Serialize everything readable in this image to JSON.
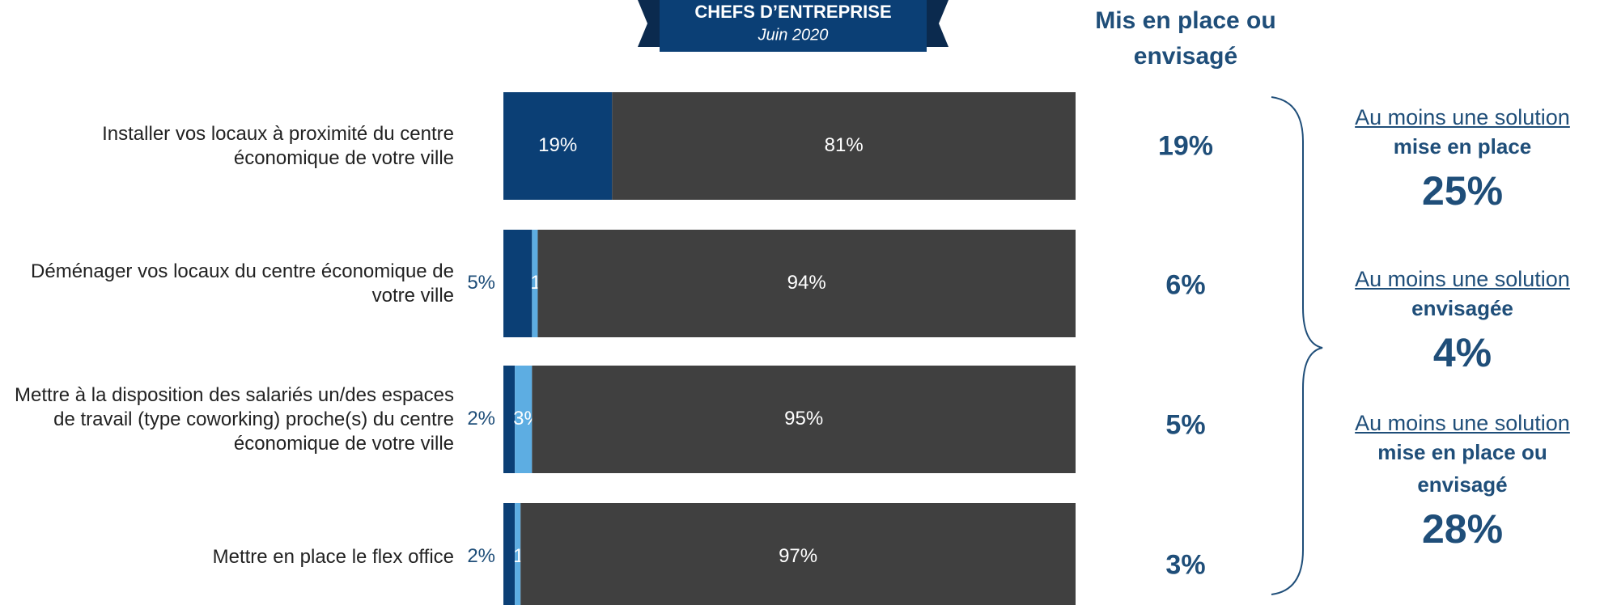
{
  "header": {
    "title": "CHEFS D’ENTREPRISE",
    "subtitle": "Juin 2020"
  },
  "chart_data": {
    "type": "bar",
    "categories": [
      "Installer vos locaux à proximité du centre économique de votre ville",
      "Déménager vos locaux du centre économique de votre ville",
      "Mettre à la disposition des salariés un/des espaces de travail (type coworking) proche(s) du centre économique de votre ville",
      "Mettre en place le flex office"
    ],
    "series": [
      {
        "color": "#0b3f75",
        "values": [
          19,
          5,
          2,
          2
        ],
        "value_labels": [
          "19%",
          "5%",
          "2%",
          "2%"
        ]
      },
      {
        "color": "#5dade2",
        "values": [
          null,
          1,
          3,
          1
        ],
        "value_labels": [
          null,
          "1%",
          "3%",
          "1%"
        ]
      },
      {
        "color": "#404040",
        "values": [
          81,
          94,
          95,
          97
        ],
        "value_labels": [
          "81%",
          "94%",
          "95%",
          "97%"
        ]
      }
    ],
    "xlim": [
      0,
      100
    ]
  },
  "totals": {
    "title": "Mis en place ou envisagé",
    "values": [
      19,
      6,
      5,
      3
    ],
    "value_labels": [
      "19%",
      "6%",
      "5%",
      "3%"
    ]
  },
  "summary": [
    {
      "link": "Au moins une solution",
      "label": "mise en place",
      "value": 25,
      "value_label": "25%"
    },
    {
      "link": "Au moins une solution",
      "label": "envisagée",
      "value": 4,
      "value_label": "4%"
    },
    {
      "link": "Au moins une solution",
      "label": "mise en place ou envisagé",
      "value": 28,
      "value_label": "28%"
    }
  ]
}
